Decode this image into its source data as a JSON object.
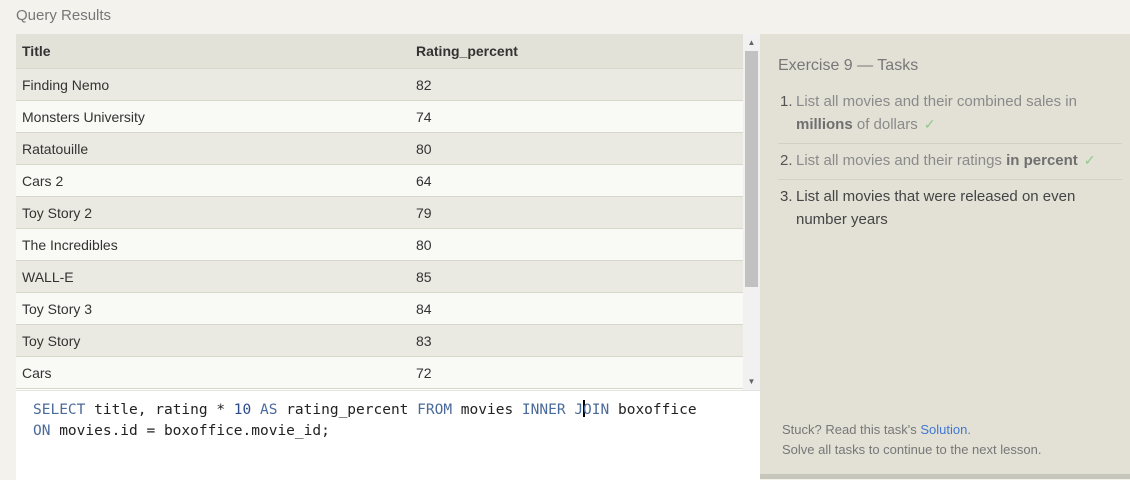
{
  "header": {
    "title": "Query Results"
  },
  "results": {
    "columns": [
      "Title",
      "Rating_percent"
    ],
    "rows": [
      [
        "Finding Nemo",
        "82"
      ],
      [
        "Monsters University",
        "74"
      ],
      [
        "Ratatouille",
        "80"
      ],
      [
        "Cars 2",
        "64"
      ],
      [
        "Toy Story 2",
        "79"
      ],
      [
        "The Incredibles",
        "80"
      ],
      [
        "WALL-E",
        "85"
      ],
      [
        "Toy Story 3",
        "84"
      ],
      [
        "Toy Story",
        "83"
      ],
      [
        "Cars",
        "72"
      ]
    ]
  },
  "editor": {
    "query_tokens": [
      {
        "t": "SELECT",
        "k": "kw"
      },
      {
        "t": " title, rating * "
      },
      {
        "t": "10",
        "k": "num"
      },
      {
        "t": " "
      },
      {
        "t": "AS",
        "k": "kw"
      },
      {
        "t": " rating_percent "
      },
      {
        "t": "FROM",
        "k": "kw"
      },
      {
        "t": " movies "
      },
      {
        "t": "INNER",
        "k": "kw"
      },
      {
        "t": " "
      },
      {
        "t": "J",
        "k": "kw"
      },
      {
        "cursor": true
      },
      {
        "t": "OIN",
        "k": "kw"
      },
      {
        "t": " boxoffice\n"
      },
      {
        "t": "ON",
        "k": "kw"
      },
      {
        "t": " movies.id = boxoffice.movie_id;"
      }
    ]
  },
  "sidebar": {
    "exercise_title": "Exercise 9 — Tasks",
    "tasks": [
      {
        "number": "1.",
        "parts": [
          {
            "t": "List all movies and their combined sales in "
          },
          {
            "t": "millions",
            "b": true
          },
          {
            "t": " of dollars"
          }
        ],
        "done": true,
        "check": "✓"
      },
      {
        "number": "2.",
        "parts": [
          {
            "t": "List all movies and their ratings "
          },
          {
            "t": "in percent",
            "b": true
          }
        ],
        "done": true,
        "check": "✓"
      },
      {
        "number": "3.",
        "parts": [
          {
            "t": "List all movies that were released on even number years"
          }
        ],
        "done": false
      }
    ],
    "footer": {
      "stuck_prefix": "Stuck? Read this task's ",
      "solution_link": "Solution",
      "stuck_suffix": ".",
      "continue_text": "Solve all tasks to continue to the next lesson."
    }
  }
}
